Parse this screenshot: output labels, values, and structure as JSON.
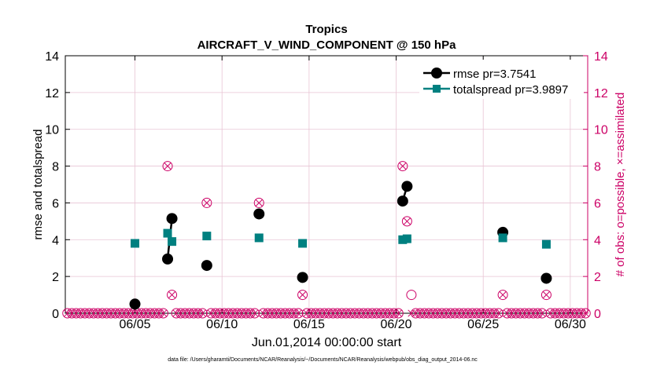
{
  "chart_data": {
    "type": "line",
    "title": "Tropics",
    "subtitle": "AIRCRAFT_V_WIND_COMPONENT @ 150 hPa",
    "xlabel": "Jun.01,2014 00:00:00 start",
    "ylabel": "rmse and totalspread",
    "y2label": "# of obs: o=possible, ×=assimilated",
    "footnote": "data file: /Users/gharamti/Documents/NCAR/Reanalysis/~/Documents/NCAR/Reanalysis/webpub/obs_diag_output_2014-06.nc",
    "xlim": [
      1.0,
      31.0
    ],
    "ylim": [
      0,
      14
    ],
    "y2lim": [
      0,
      14
    ],
    "grid": true,
    "legend_position": "top-right",
    "xtick_values": [
      5,
      10,
      15,
      20,
      25,
      30
    ],
    "xtick_labels": [
      "06/05",
      "06/10",
      "06/15",
      "06/20",
      "06/25",
      "06/30"
    ],
    "ytick_values": [
      0,
      2,
      4,
      6,
      8,
      10,
      12,
      14
    ],
    "ytick_labels": [
      "0",
      "2",
      "4",
      "6",
      "8",
      "10",
      "12",
      "14"
    ],
    "y2tick_labels": [
      "0",
      "2",
      "4",
      "6",
      "8",
      "10",
      "12",
      "14"
    ],
    "colors": {
      "rmse": "#000000",
      "totalspread": "#008080",
      "obs": "#cc0066",
      "grid": "#e8c4d4"
    },
    "series": [
      {
        "name": "rmse pr=3.7541",
        "key": "rmse",
        "marker": "circle",
        "segments": [
          [
            [
              5.0,
              0.5
            ]
          ],
          [
            [
              6.875,
              2.95
            ],
            [
              7.125,
              5.15
            ]
          ],
          [
            [
              9.125,
              2.6
            ]
          ],
          [
            [
              12.125,
              5.4
            ]
          ],
          [
            [
              14.625,
              1.95
            ]
          ],
          [
            [
              20.375,
              6.1
            ],
            [
              20.625,
              6.9
            ]
          ],
          [
            [
              26.125,
              4.4
            ]
          ],
          [
            [
              28.625,
              1.9
            ]
          ]
        ]
      },
      {
        "name": "totalspread pr=3.9897",
        "key": "totalspread",
        "marker": "square",
        "segments": [
          [
            [
              5.0,
              3.8
            ]
          ],
          [
            [
              6.875,
              4.35
            ],
            [
              7.125,
              3.9
            ]
          ],
          [
            [
              9.125,
              4.2
            ]
          ],
          [
            [
              12.125,
              4.1
            ]
          ],
          [
            [
              14.625,
              3.8
            ]
          ],
          [
            [
              20.375,
              4.0
            ],
            [
              20.625,
              4.05
            ]
          ],
          [
            [
              26.125,
              4.1
            ]
          ],
          [
            [
              28.625,
              3.75
            ]
          ]
        ]
      }
    ],
    "obs_counts": {
      "x_start": 1.125,
      "x_step": 0.25,
      "count": 120,
      "nonzero": [
        {
          "x": 5.0,
          "possible": 1,
          "assimilated": 1
        },
        {
          "x": 6.875,
          "possible": 8,
          "assimilated": 8
        },
        {
          "x": 7.125,
          "possible": 1,
          "assimilated": 1
        },
        {
          "x": 9.125,
          "possible": 6,
          "assimilated": 6
        },
        {
          "x": 12.125,
          "possible": 6,
          "assimilated": 6
        },
        {
          "x": 14.625,
          "possible": 1,
          "assimilated": 1
        },
        {
          "x": 20.375,
          "possible": 8,
          "assimilated": 8
        },
        {
          "x": 20.625,
          "possible": 5,
          "assimilated": 5
        },
        {
          "x": 20.875,
          "possible": 1,
          "assimilated": 0
        },
        {
          "x": 26.125,
          "possible": 1,
          "assimilated": 1
        },
        {
          "x": 28.625,
          "possible": 1,
          "assimilated": 1
        }
      ]
    }
  }
}
